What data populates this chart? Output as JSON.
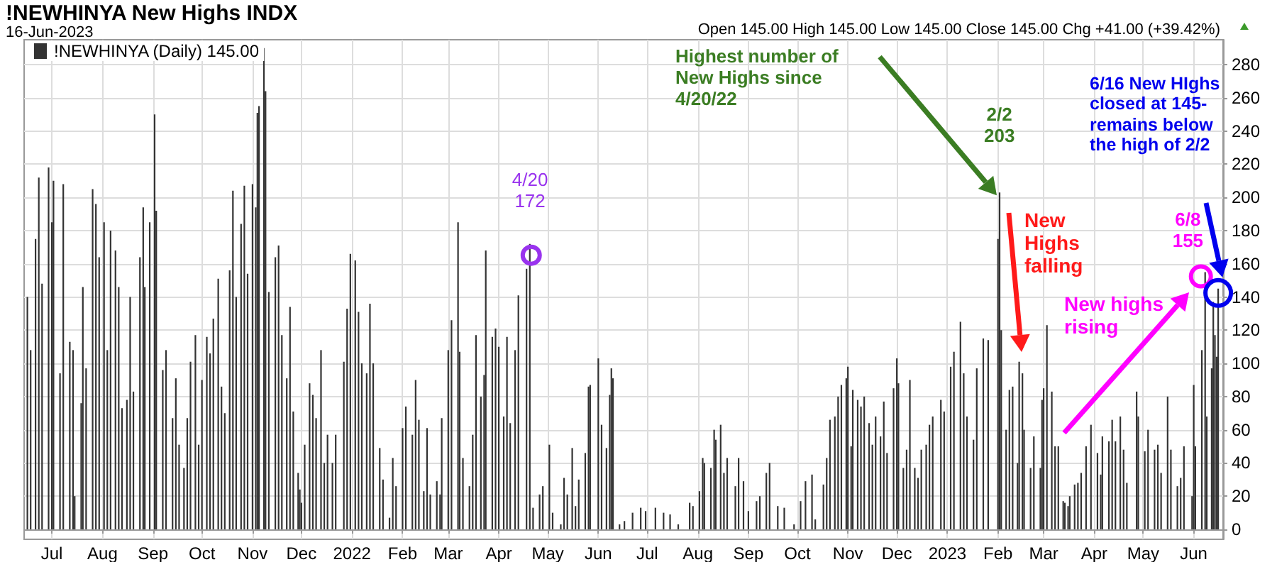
{
  "chart_data": {
    "type": "bar",
    "title": "!NEWHINYA New Highs INDX",
    "subtitle": "16-Jun-2023",
    "annotations": [
      "Open 145.00 High 145.00 Low 145.00 Close 145.00 Chg +41.00 (+39.42%)",
      "Highest number of New Highs since 4/20/22",
      {
        "text": "4/20\n172",
        "x": "2022-04-20",
        "y": 172
      },
      {
        "text": "2/2\n203",
        "x": "2023-02-02",
        "y": 203
      },
      "New Highs falling",
      {
        "text": "6/8\n155",
        "x": "2023-06-08",
        "y": 155
      },
      "New highs rising",
      "6/16 New HIghs closed at 145- remains below the high of 2/2"
    ],
    "series": [
      {
        "name": "!NEWHINYA (Daily) 145.00",
        "color": "#333333",
        "x": [
          "2021-06-16",
          "2021-06-18",
          "2021-06-21",
          "2021-06-23",
          "2021-06-25",
          "2021-06-29",
          "2021-07-01",
          "2021-07-02",
          "2021-07-06",
          "2021-07-08",
          "2021-07-12",
          "2021-07-14",
          "2021-07-15",
          "2021-07-19",
          "2021-07-20",
          "2021-07-22",
          "2021-07-26",
          "2021-07-28",
          "2021-07-30",
          "2021-08-02",
          "2021-08-04",
          "2021-08-06",
          "2021-08-09",
          "2021-08-11",
          "2021-08-13",
          "2021-08-16",
          "2021-08-18",
          "2021-08-20",
          "2021-08-24",
          "2021-08-26",
          "2021-08-27",
          "2021-08-30",
          "2021-09-02",
          "2021-09-03",
          "2021-09-07",
          "2021-09-09",
          "2021-09-13",
          "2021-09-15",
          "2021-09-17",
          "2021-09-20",
          "2021-09-22",
          "2021-09-24",
          "2021-09-27",
          "2021-09-29",
          "2021-10-01",
          "2021-10-04",
          "2021-10-06",
          "2021-10-08",
          "2021-10-11",
          "2021-10-13",
          "2021-10-15",
          "2021-10-18",
          "2021-10-20",
          "2021-10-22",
          "2021-10-25",
          "2021-10-27",
          "2021-10-29",
          "2021-11-01",
          "2021-11-03",
          "2021-11-04",
          "2021-11-05",
          "2021-11-08",
          "2021-11-09",
          "2021-11-11",
          "2021-11-15",
          "2021-11-17",
          "2021-11-19",
          "2021-11-22",
          "2021-11-24",
          "2021-11-26",
          "2021-11-29",
          "2021-11-30",
          "2021-12-01",
          "2021-12-03",
          "2021-12-06",
          "2021-12-08",
          "2021-12-10",
          "2021-12-13",
          "2021-12-15",
          "2021-12-17",
          "2021-12-20",
          "2021-12-22",
          "2021-12-27",
          "2021-12-29",
          "2021-12-31",
          "2022-01-03",
          "2022-01-05",
          "2022-01-07",
          "2022-01-10",
          "2022-01-12",
          "2022-01-14",
          "2022-01-18",
          "2022-01-20",
          "2022-01-24",
          "2022-01-26",
          "2022-01-28",
          "2022-02-01",
          "2022-02-03",
          "2022-02-07",
          "2022-02-09",
          "2022-02-11",
          "2022-02-14",
          "2022-02-16",
          "2022-02-18",
          "2022-02-22",
          "2022-02-24",
          "2022-02-25",
          "2022-03-01",
          "2022-03-03",
          "2022-03-07",
          "2022-03-08",
          "2022-03-10",
          "2022-03-14",
          "2022-03-16",
          "2022-03-18",
          "2022-03-21",
          "2022-03-23",
          "2022-03-24",
          "2022-03-28",
          "2022-03-30",
          "2022-04-01",
          "2022-04-04",
          "2022-04-06",
          "2022-04-08",
          "2022-04-11",
          "2022-04-13",
          "2022-04-18",
          "2022-04-20",
          "2022-04-22",
          "2022-04-26",
          "2022-04-28",
          "2022-05-02",
          "2022-05-04",
          "2022-05-09",
          "2022-05-11",
          "2022-05-13",
          "2022-05-16",
          "2022-05-18",
          "2022-05-20",
          "2022-05-24",
          "2022-05-26",
          "2022-05-27",
          "2022-06-01",
          "2022-06-03",
          "2022-06-06",
          "2022-06-08",
          "2022-06-09",
          "2022-06-10",
          "2022-06-14",
          "2022-06-17",
          "2022-06-22",
          "2022-06-27",
          "2022-06-30",
          "2022-07-06",
          "2022-07-11",
          "2022-07-15",
          "2022-07-20",
          "2022-07-27",
          "2022-07-29",
          "2022-08-02",
          "2022-08-04",
          "2022-08-05",
          "2022-08-09",
          "2022-08-11",
          "2022-08-12",
          "2022-08-15",
          "2022-08-17",
          "2022-08-19",
          "2022-08-24",
          "2022-08-26",
          "2022-08-29",
          "2022-09-01",
          "2022-09-06",
          "2022-09-08",
          "2022-09-12",
          "2022-09-14",
          "2022-09-19",
          "2022-09-23",
          "2022-09-29",
          "2022-10-03",
          "2022-10-06",
          "2022-10-10",
          "2022-10-12",
          "2022-10-17",
          "2022-10-19",
          "2022-10-21",
          "2022-10-24",
          "2022-10-26",
          "2022-10-28",
          "2022-10-31",
          "2022-11-01",
          "2022-11-03",
          "2022-11-04",
          "2022-11-07",
          "2022-11-09",
          "2022-11-11",
          "2022-11-14",
          "2022-11-16",
          "2022-11-18",
          "2022-11-21",
          "2022-11-23",
          "2022-11-25",
          "2022-11-29",
          "2022-12-01",
          "2022-12-02",
          "2022-12-05",
          "2022-12-07",
          "2022-12-09",
          "2022-12-12",
          "2022-12-14",
          "2022-12-16",
          "2022-12-19",
          "2022-12-21",
          "2022-12-23",
          "2022-12-28",
          "2022-12-30",
          "2023-01-03",
          "2023-01-05",
          "2023-01-09",
          "2023-01-11",
          "2023-01-13",
          "2023-01-17",
          "2023-01-19",
          "2023-01-23",
          "2023-01-26",
          "2023-02-01",
          "2023-02-02",
          "2023-02-03",
          "2023-02-06",
          "2023-02-08",
          "2023-02-10",
          "2023-02-13",
          "2023-02-14",
          "2023-02-16",
          "2023-02-17",
          "2023-02-21",
          "2023-02-23",
          "2023-02-27",
          "2023-02-28",
          "2023-03-01",
          "2023-03-03",
          "2023-03-06",
          "2023-03-08",
          "2023-03-10",
          "2023-03-13",
          "2023-03-14",
          "2023-03-16",
          "2023-03-17",
          "2023-03-20",
          "2023-03-22",
          "2023-03-24",
          "2023-03-27",
          "2023-03-30",
          "2023-04-03",
          "2023-04-05",
          "2023-04-06",
          "2023-04-10",
          "2023-04-12",
          "2023-04-14",
          "2023-04-17",
          "2023-04-19",
          "2023-04-21",
          "2023-04-27",
          "2023-04-28",
          "2023-05-02",
          "2023-05-04",
          "2023-05-08",
          "2023-05-10",
          "2023-05-12",
          "2023-05-16",
          "2023-05-18",
          "2023-05-22",
          "2023-05-24",
          "2023-05-26",
          "2023-05-31",
          "2023-06-01",
          "2023-06-02",
          "2023-06-06",
          "2023-06-08",
          "2023-06-09",
          "2023-06-12",
          "2023-06-13",
          "2023-06-14",
          "2023-06-15",
          "2023-06-16"
        ],
        "values": [
          140,
          108,
          175,
          212,
          148,
          218,
          185,
          210,
          94,
          208,
          113,
          108,
          20,
          76,
          146,
          97,
          205,
          196,
          164,
          185,
          108,
          180,
          168,
          146,
          73,
          78,
          140,
          83,
          164,
          194,
          146,
          185,
          250,
          192,
          96,
          108,
          67,
          91,
          51,
          37,
          67,
          101,
          117,
          51,
          90,
          116,
          106,
          127,
          151,
          86,
          70,
          156,
          204,
          140,
          184,
          207,
          154,
          208,
          194,
          251,
          255,
          290,
          264,
          143,
          164,
          171,
          117,
          91,
          134,
          71,
          34,
          24,
          16,
          51,
          88,
          81,
          67,
          108,
          40,
          57,
          40,
          57,
          101,
          133,
          166,
          162,
          131,
          100,
          94,
          136,
          100,
          49,
          30,
          7,
          43,
          26,
          61,
          74,
          57,
          90,
          66,
          23,
          61,
          21,
          29,
          21,
          67,
          108,
          126,
          185,
          107,
          43,
          26,
          57,
          117,
          80,
          93,
          168,
          116,
          121,
          110,
          68,
          116,
          64,
          108,
          141,
          157,
          172,
          13,
          21,
          26,
          51,
          10,
          3,
          31,
          21,
          49,
          14,
          30,
          46,
          86,
          87,
          103,
          63,
          49,
          81,
          97,
          91,
          3,
          5,
          10,
          13,
          11,
          13,
          10,
          9,
          3,
          16,
          14,
          23,
          43,
          40,
          37,
          60,
          54,
          63,
          34,
          43,
          26,
          43,
          29,
          11,
          17,
          20,
          34,
          40,
          14,
          13,
          3,
          17,
          29,
          33,
          6,
          27,
          43,
          66,
          68,
          80,
          87,
          91,
          98,
          50,
          84,
          78,
          74,
          80,
          64,
          51,
          68,
          56,
          77,
          46,
          85,
          103,
          88,
          37,
          48,
          90,
          37,
          31,
          48,
          51,
          63,
          68,
          78,
          71,
          98,
          107,
          125,
          94,
          68,
          54,
          97,
          115,
          114,
          175,
          203,
          120,
          60,
          84,
          86,
          40,
          101,
          94,
          60,
          37,
          56,
          37,
          78,
          85,
          123,
          83,
          50,
          50,
          17,
          16,
          14,
          20,
          27,
          28,
          34,
          50,
          63,
          46,
          33,
          56,
          53,
          66,
          53,
          68,
          48,
          28,
          83,
          68,
          47,
          60,
          48,
          51,
          34,
          80,
          48,
          26,
          31,
          50,
          20,
          87,
          50,
          108,
          155,
          68,
          97,
          137,
          117,
          104,
          145
        ]
      }
    ],
    "xlim": [
      "2021-06-14",
      "2023-06-19"
    ],
    "xticks": [
      {
        "value": "2021-07-01",
        "label": "Jul"
      },
      {
        "value": "2021-08-01",
        "label": "Aug"
      },
      {
        "value": "2021-09-01",
        "label": "Sep"
      },
      {
        "value": "2021-10-01",
        "label": "Oct"
      },
      {
        "value": "2021-11-01",
        "label": "Nov"
      },
      {
        "value": "2021-12-01",
        "label": "Dec"
      },
      {
        "value": "2022-01-01",
        "label": "2022"
      },
      {
        "value": "2022-02-01",
        "label": "Feb"
      },
      {
        "value": "2022-03-01",
        "label": "Mar"
      },
      {
        "value": "2022-04-01",
        "label": "Apr"
      },
      {
        "value": "2022-05-01",
        "label": "May"
      },
      {
        "value": "2022-06-01",
        "label": "Jun"
      },
      {
        "value": "2022-07-01",
        "label": "Jul"
      },
      {
        "value": "2022-08-01",
        "label": "Aug"
      },
      {
        "value": "2022-09-01",
        "label": "Sep"
      },
      {
        "value": "2022-10-01",
        "label": "Oct"
      },
      {
        "value": "2022-11-01",
        "label": "Nov"
      },
      {
        "value": "2022-12-01",
        "label": "Dec"
      },
      {
        "value": "2023-01-01",
        "label": "2023"
      },
      {
        "value": "2023-02-01",
        "label": "Feb"
      },
      {
        "value": "2023-03-01",
        "label": "Mar"
      },
      {
        "value": "2023-04-01",
        "label": "Apr"
      },
      {
        "value": "2023-05-01",
        "label": "May"
      },
      {
        "value": "2023-06-01",
        "label": "Jun"
      }
    ],
    "ylim": [
      -6,
      295
    ],
    "yticks": [
      0,
      20,
      40,
      60,
      80,
      100,
      120,
      140,
      160,
      180,
      200,
      220,
      240,
      260,
      280
    ],
    "grid": true,
    "legend": "top left"
  }
}
